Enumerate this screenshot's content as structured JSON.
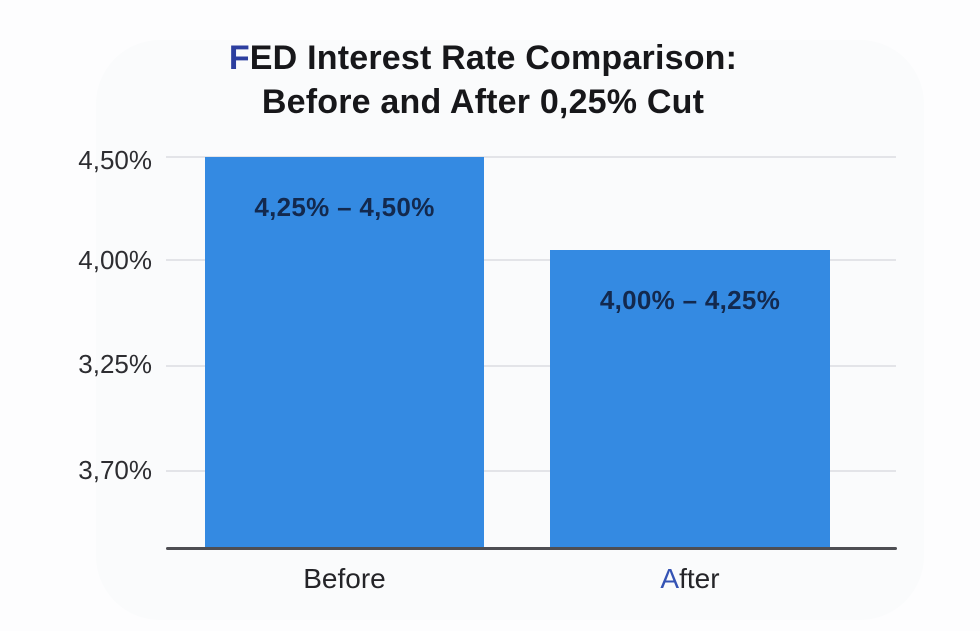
{
  "chart_data": {
    "type": "bar",
    "title": "FED Interest Rate Comparison: Before and After 0,25% Cut",
    "title_lines": [
      "FED Interest Rate Comparison:",
      "Before and After 0,25% Cut"
    ],
    "categories": [
      "Before",
      "After"
    ],
    "values": [
      4.5,
      4.25
    ],
    "ranges": [
      [
        4.25,
        4.5
      ],
      [
        4.0,
        4.25
      ]
    ],
    "bar_labels": [
      "4,25% – 4,50%",
      "4,00% – 4,25%"
    ],
    "y_ticks_top_to_bottom": [
      "4,50%",
      "4,00%",
      "3,25%",
      "3,70%"
    ],
    "xlabel": "",
    "ylabel": "",
    "grid": true,
    "legend": false,
    "decimal_style": "comma",
    "colors": {
      "bar": "#348ae2",
      "bar_label_text": "#13294e",
      "title_text": "#17171a",
      "tick_label_text": "#2d2d31",
      "gridline": "#e3e4e8",
      "axis_line": "#4e4e53",
      "background": "#fdfdfe"
    }
  }
}
